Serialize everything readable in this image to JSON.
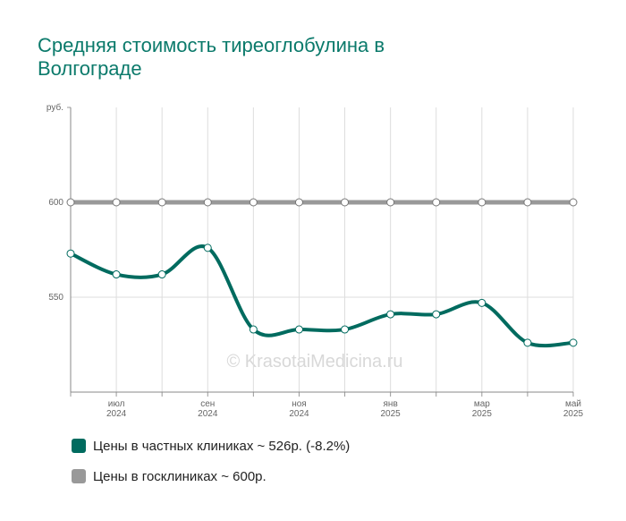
{
  "chart_data": {
    "type": "line",
    "title": "Средняя стоимость тиреоглобулина в Волгограде",
    "watermark": "© KrasotaiMedicina.ru",
    "categories": [
      null,
      [
        "июл",
        "2024"
      ],
      null,
      [
        "сен",
        "2024"
      ],
      null,
      [
        "ноя",
        "2024"
      ],
      null,
      [
        "янв",
        "2025"
      ],
      null,
      [
        "мар",
        "2025"
      ],
      null,
      [
        "май",
        "2025"
      ]
    ],
    "series": [
      {
        "name": "Цены в частных клиниках ~ 526р. (-8.2%)",
        "color": "#006b5f",
        "values": [
          573,
          562,
          562,
          576,
          533,
          533,
          533,
          541,
          541,
          547,
          526,
          526
        ]
      },
      {
        "name": "Цены в госклиниках ~ 600р.",
        "color": "#999999",
        "values": [
          600,
          600,
          600,
          600,
          600,
          600,
          600,
          600,
          600,
          600,
          600,
          600
        ]
      }
    ],
    "ylim": [
      500,
      650
    ],
    "yticks": [
      550,
      600,
      {
        "value": 650,
        "label": "руб."
      }
    ],
    "grid": true
  }
}
